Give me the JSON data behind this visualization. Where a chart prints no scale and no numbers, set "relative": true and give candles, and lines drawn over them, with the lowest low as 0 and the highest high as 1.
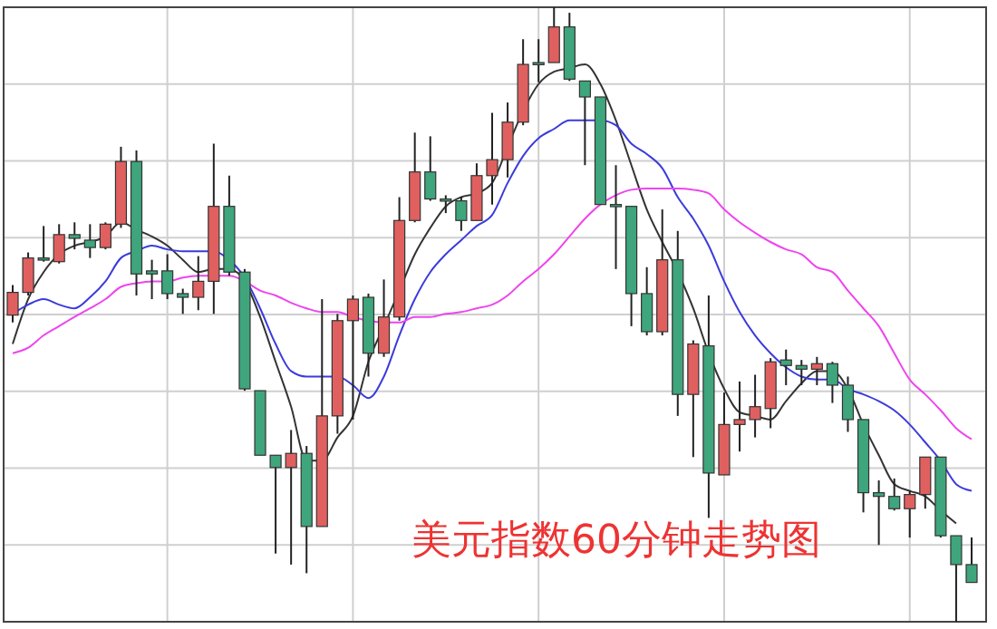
{
  "chart_data": {
    "type": "candlestick",
    "title": "美元指数60分钟走势图",
    "relative": true,
    "grid": true,
    "categories": [
      null,
      null,
      null,
      null,
      null,
      null,
      null,
      null,
      null,
      null,
      null,
      null,
      null,
      null,
      null,
      null,
      null,
      null,
      null,
      null,
      null,
      null,
      null,
      null,
      null,
      null,
      null,
      null,
      null,
      null,
      null,
      null,
      null,
      null,
      null,
      null,
      null,
      null,
      null,
      null,
      null,
      null,
      null,
      null,
      null,
      null,
      null,
      null,
      null,
      null,
      null,
      null,
      null,
      null,
      null,
      null,
      null,
      null,
      null,
      null,
      null,
      null,
      null
    ],
    "ohlc": [
      [
        0.499,
        0.548,
        0.487,
        0.536
      ],
      [
        0.536,
        0.601,
        0.531,
        0.592
      ],
      [
        0.592,
        0.644,
        0.586,
        0.589
      ],
      [
        0.586,
        0.647,
        0.583,
        0.63
      ],
      [
        0.63,
        0.65,
        0.606,
        0.624
      ],
      [
        0.621,
        0.647,
        0.592,
        0.609
      ],
      [
        0.609,
        0.65,
        0.606,
        0.647
      ],
      [
        0.647,
        0.773,
        0.641,
        0.749
      ],
      [
        0.749,
        0.767,
        0.531,
        0.566
      ],
      [
        0.571,
        0.589,
        0.525,
        0.566
      ],
      [
        0.571,
        0.598,
        0.525,
        0.534
      ],
      [
        0.534,
        0.542,
        0.501,
        0.528
      ],
      [
        0.528,
        0.595,
        0.507,
        0.554
      ],
      [
        0.554,
        0.778,
        0.501,
        0.676
      ],
      [
        0.676,
        0.726,
        0.563,
        0.569
      ],
      [
        0.569,
        0.574,
        0.376,
        0.379
      ],
      [
        0.376,
        0.376,
        0.271,
        0.271
      ],
      [
        0.271,
        0.271,
        0.111,
        0.251
      ],
      [
        0.251,
        0.312,
        0.093,
        0.274
      ],
      [
        0.274,
        0.286,
        0.079,
        0.155
      ],
      [
        0.155,
        0.525,
        0.155,
        0.335
      ],
      [
        0.335,
        0.501,
        0.306,
        0.49
      ],
      [
        0.49,
        0.531,
        0.329,
        0.525
      ],
      [
        0.528,
        0.534,
        0.399,
        0.437
      ],
      [
        0.437,
        0.557,
        0.431,
        0.496
      ],
      [
        0.496,
        0.691,
        0.49,
        0.653
      ],
      [
        0.653,
        0.796,
        0.65,
        0.732
      ],
      [
        0.732,
        0.79,
        0.685,
        0.688
      ],
      [
        0.688,
        0.694,
        0.665,
        0.685
      ],
      [
        0.685,
        0.691,
        0.636,
        0.653
      ],
      [
        0.653,
        0.746,
        0.653,
        0.726
      ],
      [
        0.726,
        0.828,
        0.679,
        0.752
      ],
      [
        0.752,
        0.845,
        0.723,
        0.813
      ],
      [
        0.813,
        0.948,
        0.808,
        0.907
      ],
      [
        0.91,
        0.948,
        0.878,
        0.907
      ],
      [
        0.91,
        1,
        0.91,
        0.968
      ],
      [
        0.968,
        0.991,
        0.88,
        0.883
      ],
      [
        0.88,
        0.88,
        0.743,
        0.854
      ],
      [
        0.854,
        0.854,
        0.679,
        0.679
      ],
      [
        0.679,
        0.743,
        0.574,
        0.676
      ],
      [
        0.676,
        0.676,
        0.481,
        0.534
      ],
      [
        0.534,
        0.577,
        0.466,
        0.472
      ],
      [
        0.472,
        0.671,
        0.466,
        0.589
      ],
      [
        0.589,
        0.636,
        0.335,
        0.37
      ],
      [
        0.37,
        0.458,
        0.268,
        0.452
      ],
      [
        0.449,
        0.531,
        0.169,
        0.242
      ],
      [
        0.239,
        0.373,
        0.239,
        0.321
      ],
      [
        0.321,
        0.391,
        0.277,
        0.329
      ],
      [
        0.329,
        0.402,
        0.3,
        0.35
      ],
      [
        0.347,
        0.429,
        0.315,
        0.423
      ],
      [
        0.426,
        0.443,
        0.385,
        0.417
      ],
      [
        0.417,
        0.426,
        0.385,
        0.411
      ],
      [
        0.411,
        0.431,
        0.385,
        0.42
      ],
      [
        0.42,
        0.423,
        0.356,
        0.385
      ],
      [
        0.385,
        0.399,
        0.309,
        0.329
      ],
      [
        0.329,
        0.329,
        0.178,
        0.21
      ],
      [
        0.21,
        0.23,
        0.125,
        0.204
      ],
      [
        0.204,
        0.233,
        0.181,
        0.184
      ],
      [
        0.184,
        0.213,
        0.137,
        0.207
      ],
      [
        0.207,
        0.268,
        0.184,
        0.268
      ],
      [
        0.268,
        0.268,
        0.137,
        0.14
      ],
      [
        0.14,
        0.14,
        0,
        0.093
      ],
      [
        0.093,
        0.137,
        0.064,
        0.064
      ]
    ],
    "series": [
      {
        "type": "line",
        "color": "#333333",
        "values": [
          0.452,
          0.525,
          0.569,
          0.598,
          0.612,
          0.618,
          0.627,
          0.65,
          0.638,
          0.627,
          0.612,
          0.589,
          0.569,
          0.574,
          0.574,
          0.554,
          0.496,
          0.423,
          0.35,
          0.262,
          0.262,
          0.3,
          0.335,
          0.423,
          0.481,
          0.539,
          0.598,
          0.641,
          0.676,
          0.691,
          0.697,
          0.714,
          0.773,
          0.831,
          0.875,
          0.895,
          0.901,
          0.907,
          0.875,
          0.816,
          0.743,
          0.671,
          0.618,
          0.569,
          0.51,
          0.437,
          0.379,
          0.341,
          0.335,
          0.329,
          0.359,
          0.388,
          0.408,
          0.408,
          0.379,
          0.321,
          0.271,
          0.224,
          0.213,
          0.204,
          0.181,
          0.16,
          null
        ]
      },
      {
        "type": "line",
        "color": "#3b3bdd",
        "values": [
          0.501,
          0.516,
          0.525,
          0.516,
          0.51,
          0.528,
          0.554,
          0.592,
          0.603,
          0.612,
          0.606,
          0.603,
          0.603,
          0.603,
          0.589,
          0.56,
          0.51,
          0.452,
          0.408,
          0.399,
          0.399,
          0.399,
          0.385,
          0.364,
          0.399,
          0.466,
          0.525,
          0.569,
          0.598,
          0.621,
          0.644,
          0.662,
          0.714,
          0.758,
          0.787,
          0.802,
          0.816,
          0.816,
          0.816,
          0.808,
          0.778,
          0.761,
          0.738,
          0.691,
          0.656,
          0.612,
          0.554,
          0.504,
          0.466,
          0.437,
          0.414,
          0.399,
          0.394,
          0.394,
          0.379,
          0.37,
          0.359,
          0.344,
          0.321,
          0.292,
          0.262,
          0.224,
          0.213
        ]
      },
      {
        "type": "line",
        "color": "#ee44ee",
        "values": [
          0.437,
          0.446,
          0.466,
          0.481,
          0.496,
          0.51,
          0.525,
          0.545,
          0.551,
          0.554,
          0.554,
          0.56,
          0.563,
          0.563,
          0.563,
          0.554,
          0.539,
          0.531,
          0.519,
          0.51,
          0.504,
          0.504,
          0.496,
          0.49,
          0.487,
          0.487,
          0.496,
          0.496,
          0.501,
          0.504,
          0.51,
          0.516,
          0.531,
          0.554,
          0.574,
          0.598,
          0.627,
          0.656,
          0.679,
          0.694,
          0.703,
          0.705,
          0.705,
          0.705,
          0.703,
          0.697,
          0.671,
          0.65,
          0.633,
          0.618,
          0.606,
          0.598,
          0.577,
          0.569,
          0.539,
          0.51,
          0.481,
          0.437,
          0.394,
          0.37,
          0.344,
          0.315,
          0.297
        ]
      }
    ]
  }
}
